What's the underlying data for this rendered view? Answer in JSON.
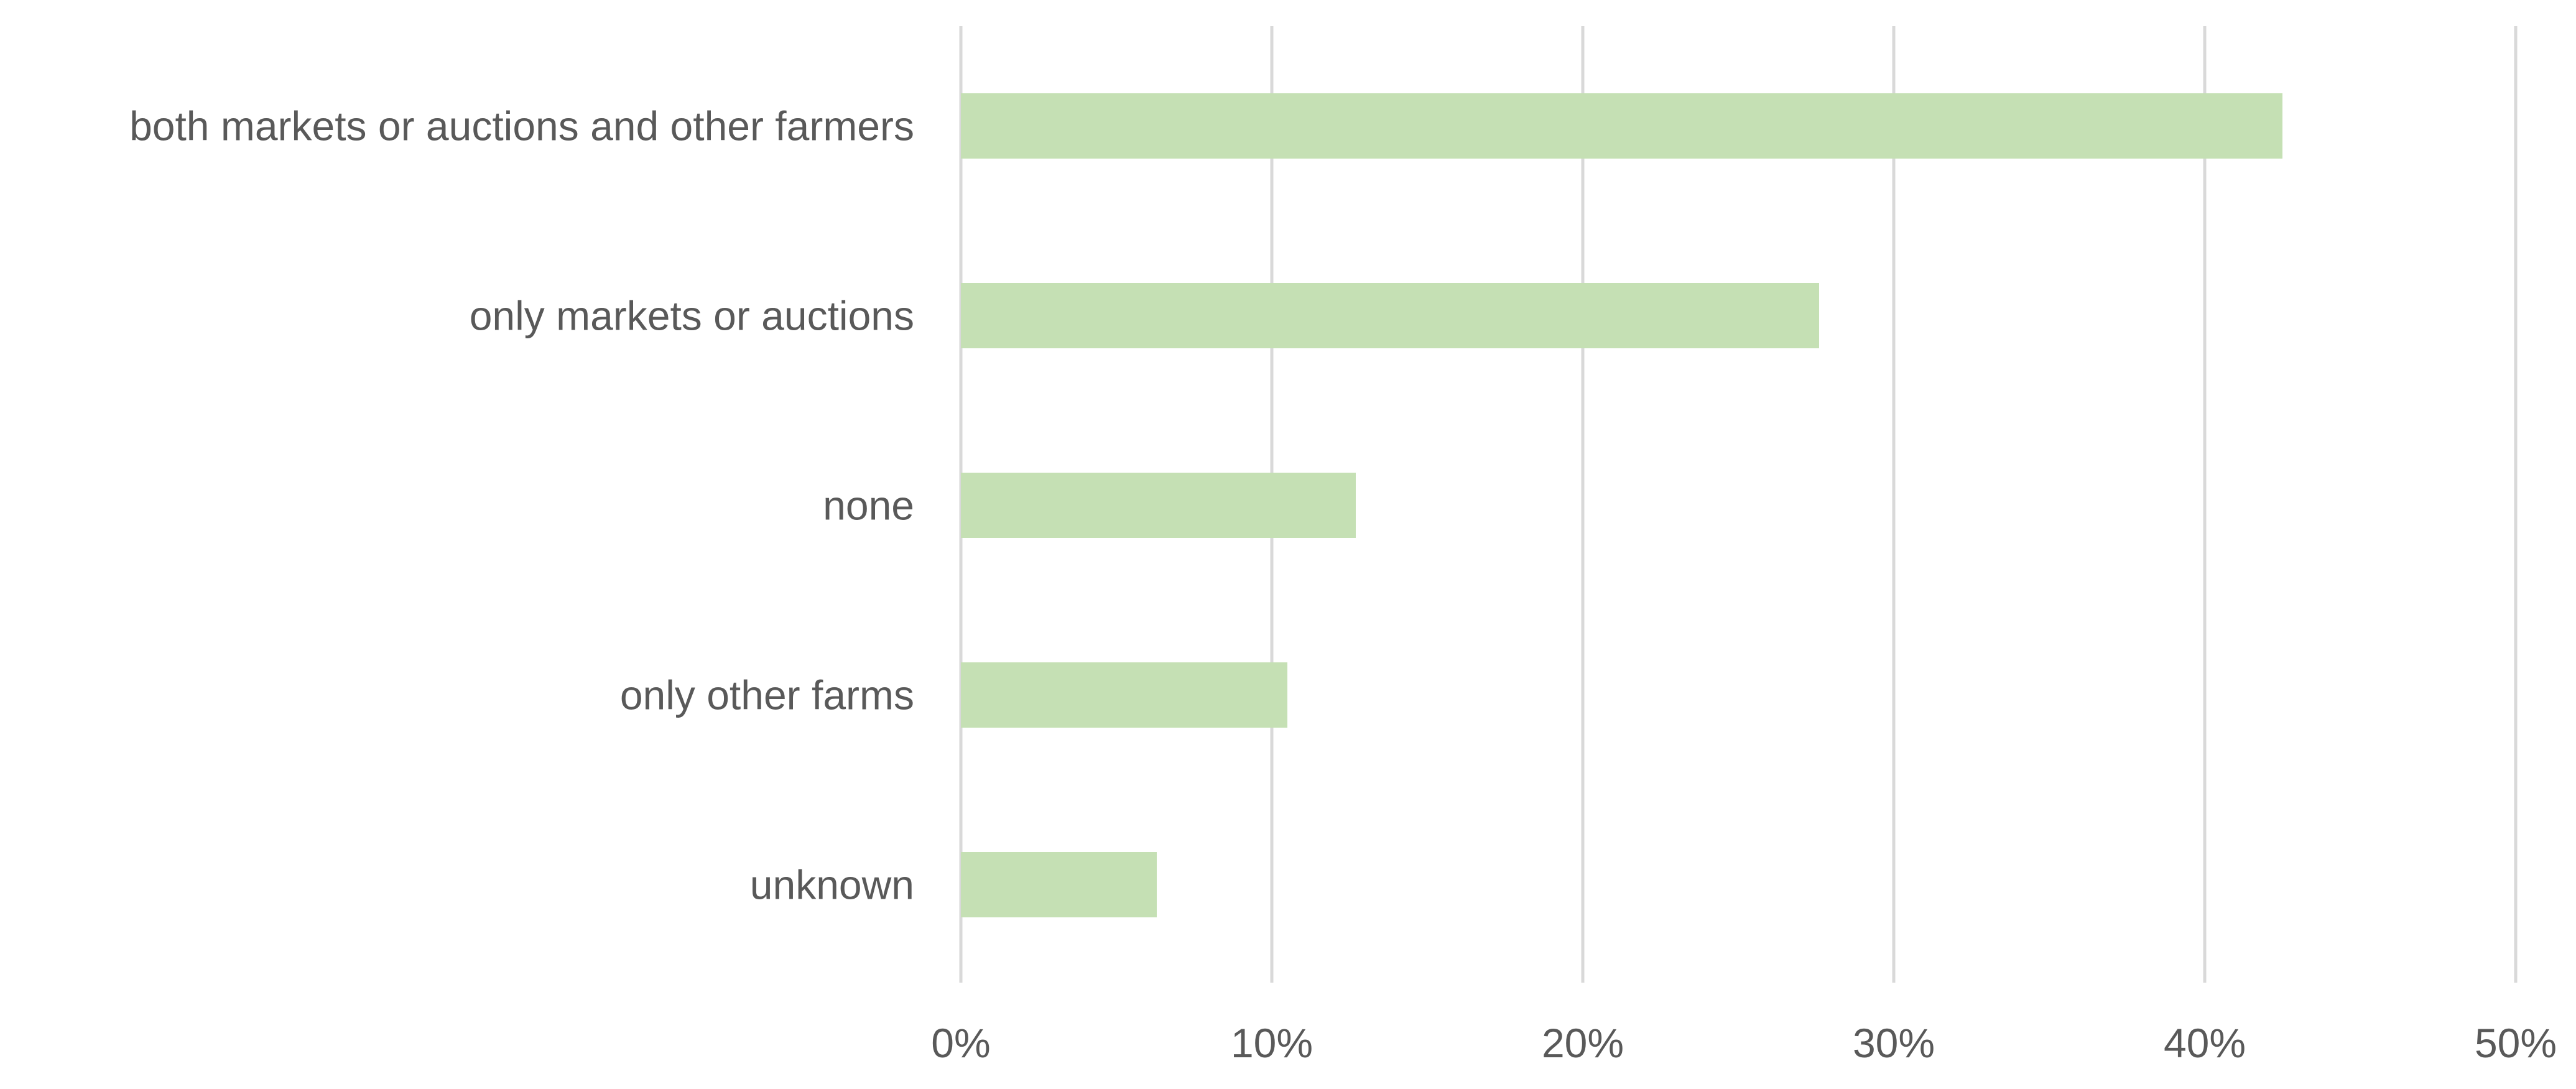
{
  "chart_data": {
    "type": "bar",
    "orientation": "horizontal",
    "categories": [
      "both markets or auctions and other farmers",
      "only markets or auctions",
      "none",
      "only other farms",
      "unknown"
    ],
    "values": [
      42.5,
      27.6,
      12.7,
      10.5,
      6.3
    ],
    "xlim": [
      0,
      50
    ],
    "x_ticks": [
      "0%",
      "10%",
      "20%",
      "30%",
      "40%",
      "50%"
    ],
    "title": "",
    "xlabel": "",
    "ylabel": "",
    "grid": "vertical",
    "legend": "none",
    "bar_color": "#c5e0b4",
    "grid_color": "#d9d9d9",
    "text_color": "#595959"
  }
}
